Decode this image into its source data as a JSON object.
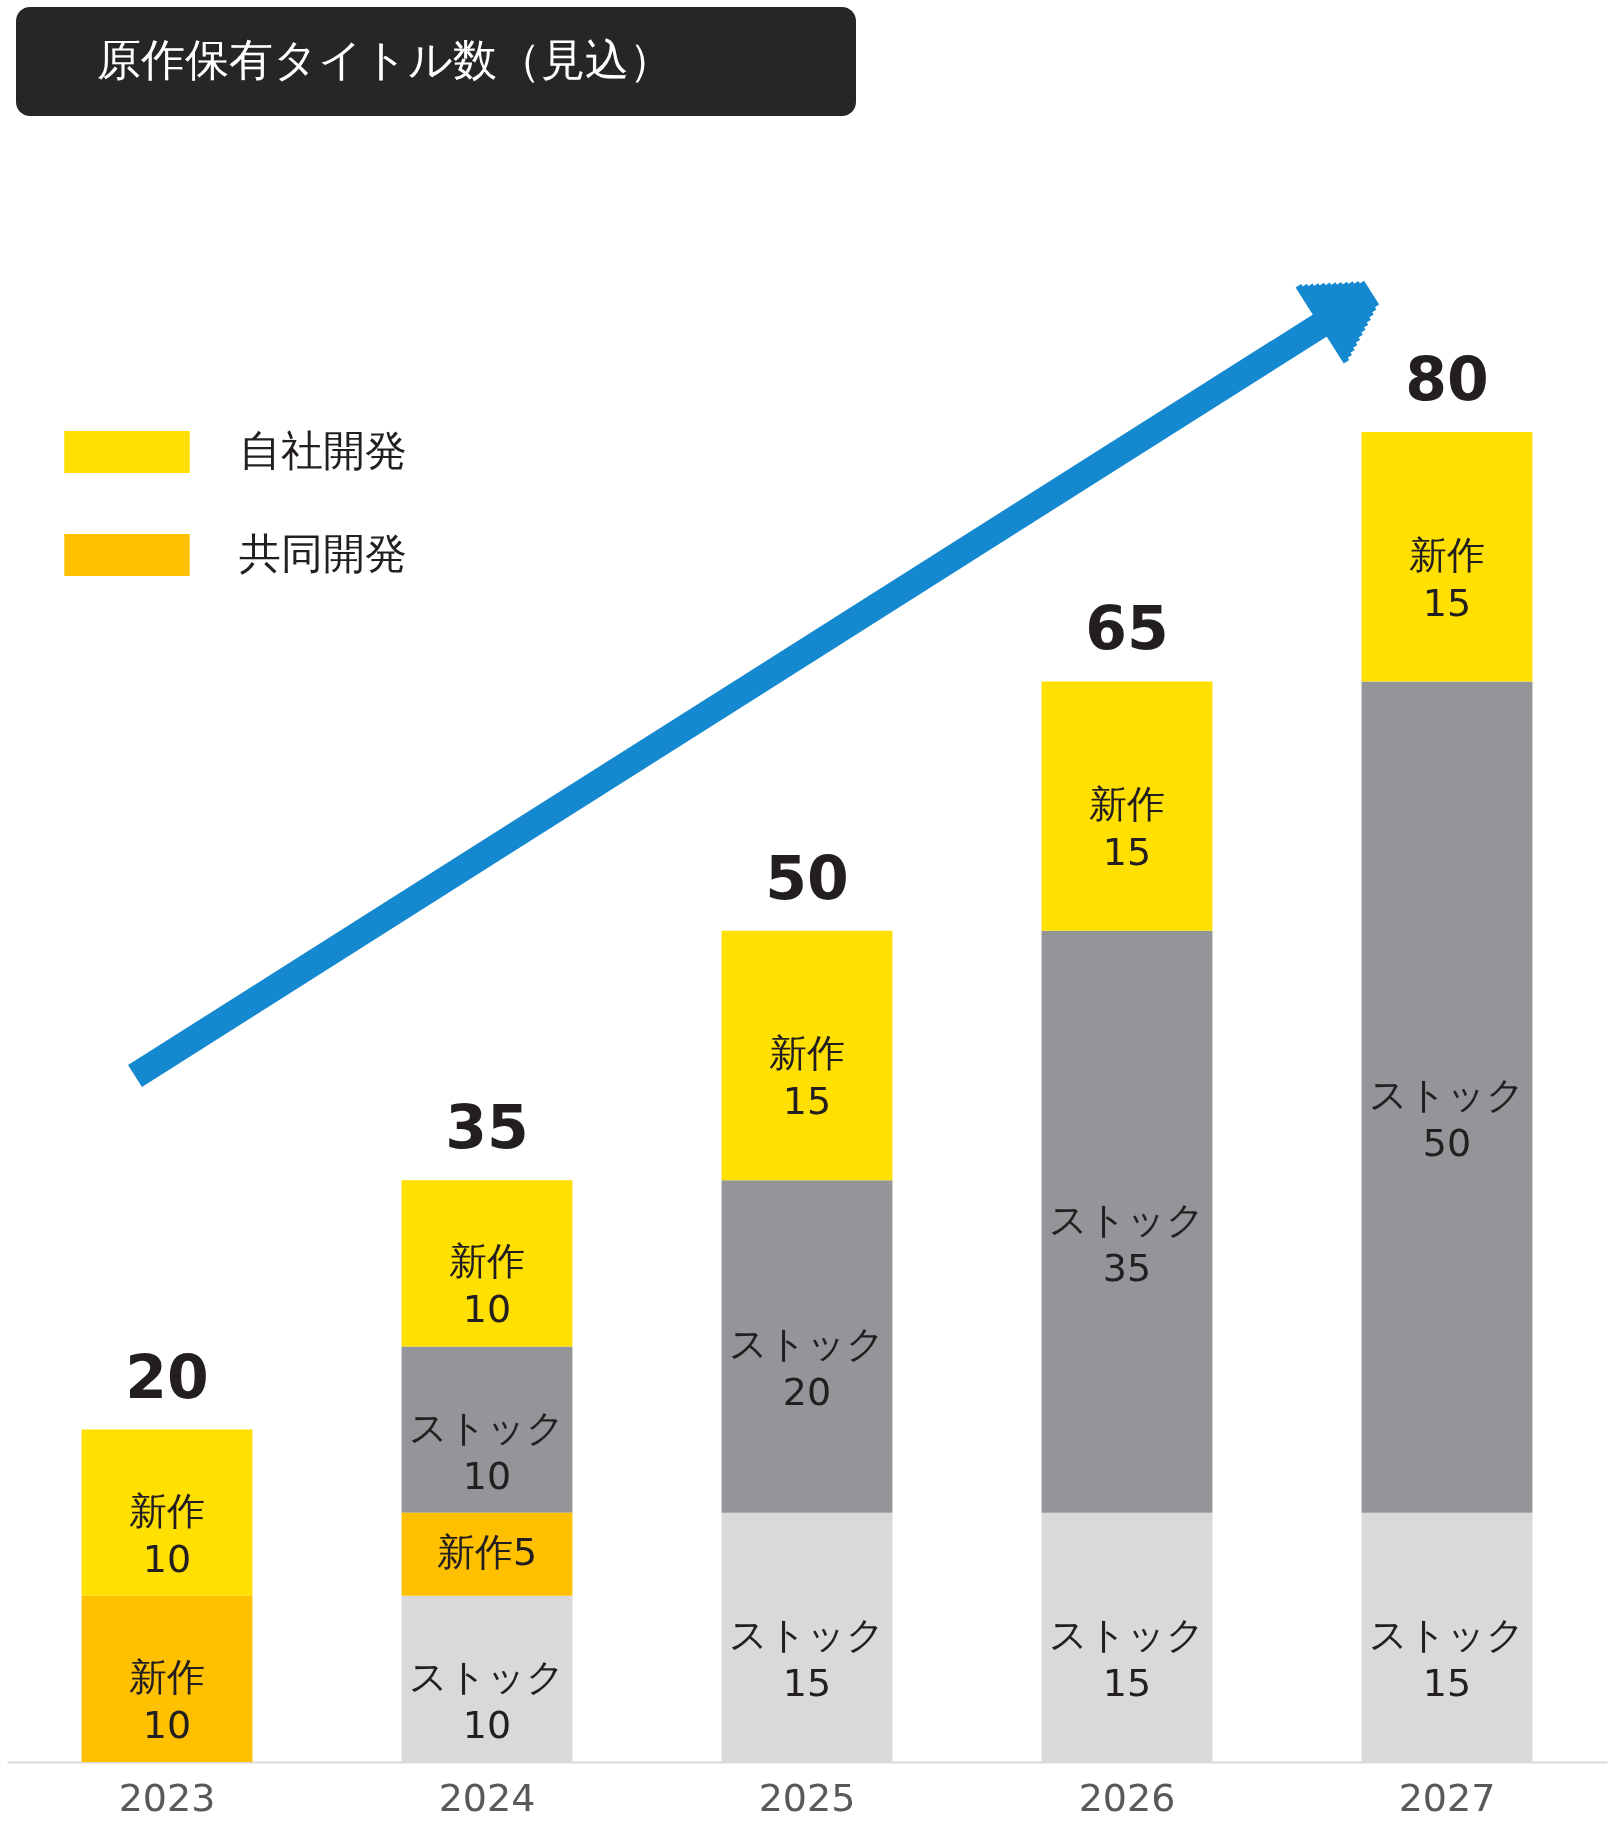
{
  "chart_data": {
    "type": "bar",
    "title": "原作保有タイトル数（見込）",
    "stacked": true,
    "categories": [
      "2023",
      "2024",
      "2025",
      "2026",
      "2027"
    ],
    "tick_labels": "x",
    "legend": "top left",
    "grid": false,
    "series": [
      {
        "color": "#d9d9d9",
        "values": [
          null,
          10,
          15,
          15,
          15
        ],
        "value_labels": [
          null,
          "ストック\n10",
          "ストック\n15",
          "ストック\n15",
          "ストック\n15"
        ]
      },
      {
        "name": "共同開発",
        "color": "#ffc000",
        "values": [
          10,
          5,
          null,
          null,
          null
        ],
        "value_labels": [
          "新作\n10",
          "新作5",
          null,
          null,
          null
        ]
      },
      {
        "color": "#939598",
        "values": [
          null,
          10,
          20,
          35,
          50
        ],
        "value_labels": [
          null,
          "ストック\n10",
          "ストック\n20",
          "ストック\n35",
          "ストック\n50"
        ]
      },
      {
        "name": "自社開発",
        "color": "#ffe000",
        "values": [
          10,
          10,
          15,
          15,
          15
        ],
        "value_labels": [
          "新作\n10",
          "新作\n10",
          "新作\n15",
          "新作\n15",
          "新作\n15"
        ]
      }
    ],
    "totals": [
      "20",
      "35",
      "50",
      "65",
      "80"
    ]
  }
}
